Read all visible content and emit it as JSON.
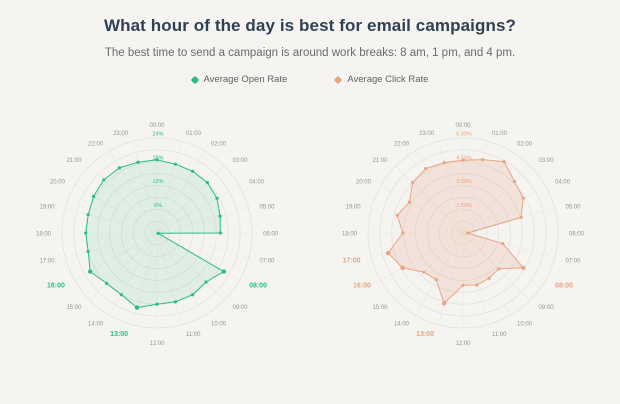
{
  "chart_data": {
    "type": "radar",
    "title": "What hour of the day is best for email campaigns?",
    "subtitle": "The best time to send a campaign is around work breaks: 8 am, 1 pm, and 4 pm.",
    "legend_position": "top",
    "grid": "circular",
    "categories": [
      "00:00",
      "01:00",
      "02:00",
      "03:00",
      "04:00",
      "05:00",
      "06:00",
      "07:00",
      "08:00",
      "09:00",
      "10:00",
      "11:00",
      "12:00",
      "13:00",
      "14:00",
      "15:00",
      "16:00",
      "17:00",
      "18:00",
      "19:00",
      "20:00",
      "21:00",
      "22:00",
      "23:00"
    ],
    "series": [
      {
        "name": "Average Open Rate",
        "color": "#26bd8b",
        "fill_color": "rgba(38,189,139,0.10)",
        "unit": "%",
        "max": 24,
        "values": [
          18.5,
          18,
          18,
          18,
          17.5,
          16.5,
          16,
          0.3,
          19.5,
          17.5,
          18,
          18,
          18,
          19.5,
          18,
          18,
          19.5,
          18,
          18,
          18,
          18.5,
          19,
          19,
          18.5
        ],
        "radial_ticks": [
          {
            "value": 6,
            "label": "6%"
          },
          {
            "value": 12,
            "label": "12%"
          },
          {
            "value": 18,
            "label": "18%"
          },
          {
            "value": 24,
            "label": "24%"
          }
        ],
        "highlighted_categories": [
          "08:00",
          "13:00",
          "16:00"
        ]
      },
      {
        "name": "Average Click Rate",
        "color": "#e7a583",
        "fill_color": "rgba(231,165,131,0.22)",
        "unit": "%",
        "max": 6,
        "values": [
          4.6,
          4.8,
          5.2,
          4.6,
          4.4,
          3.8,
          0.3,
          2.6,
          4.4,
          3.2,
          3.3,
          3.4,
          3.3,
          4.6,
          3.4,
          3.5,
          4.4,
          4.9,
          3.8,
          4.3,
          3.9,
          4.5,
          4.7,
          4.6
        ],
        "radial_ticks": [
          {
            "value": 1.5,
            "label": "1.50%"
          },
          {
            "value": 3,
            "label": "3.00%"
          },
          {
            "value": 4.5,
            "label": "4.50%"
          },
          {
            "value": 6,
            "label": "6.00%"
          }
        ],
        "highlighted_categories": [
          "08:00",
          "13:00",
          "16:00",
          "17:00"
        ]
      }
    ],
    "axis_label_color": "#97958f",
    "grid_line_color": "#e4e2dc"
  }
}
